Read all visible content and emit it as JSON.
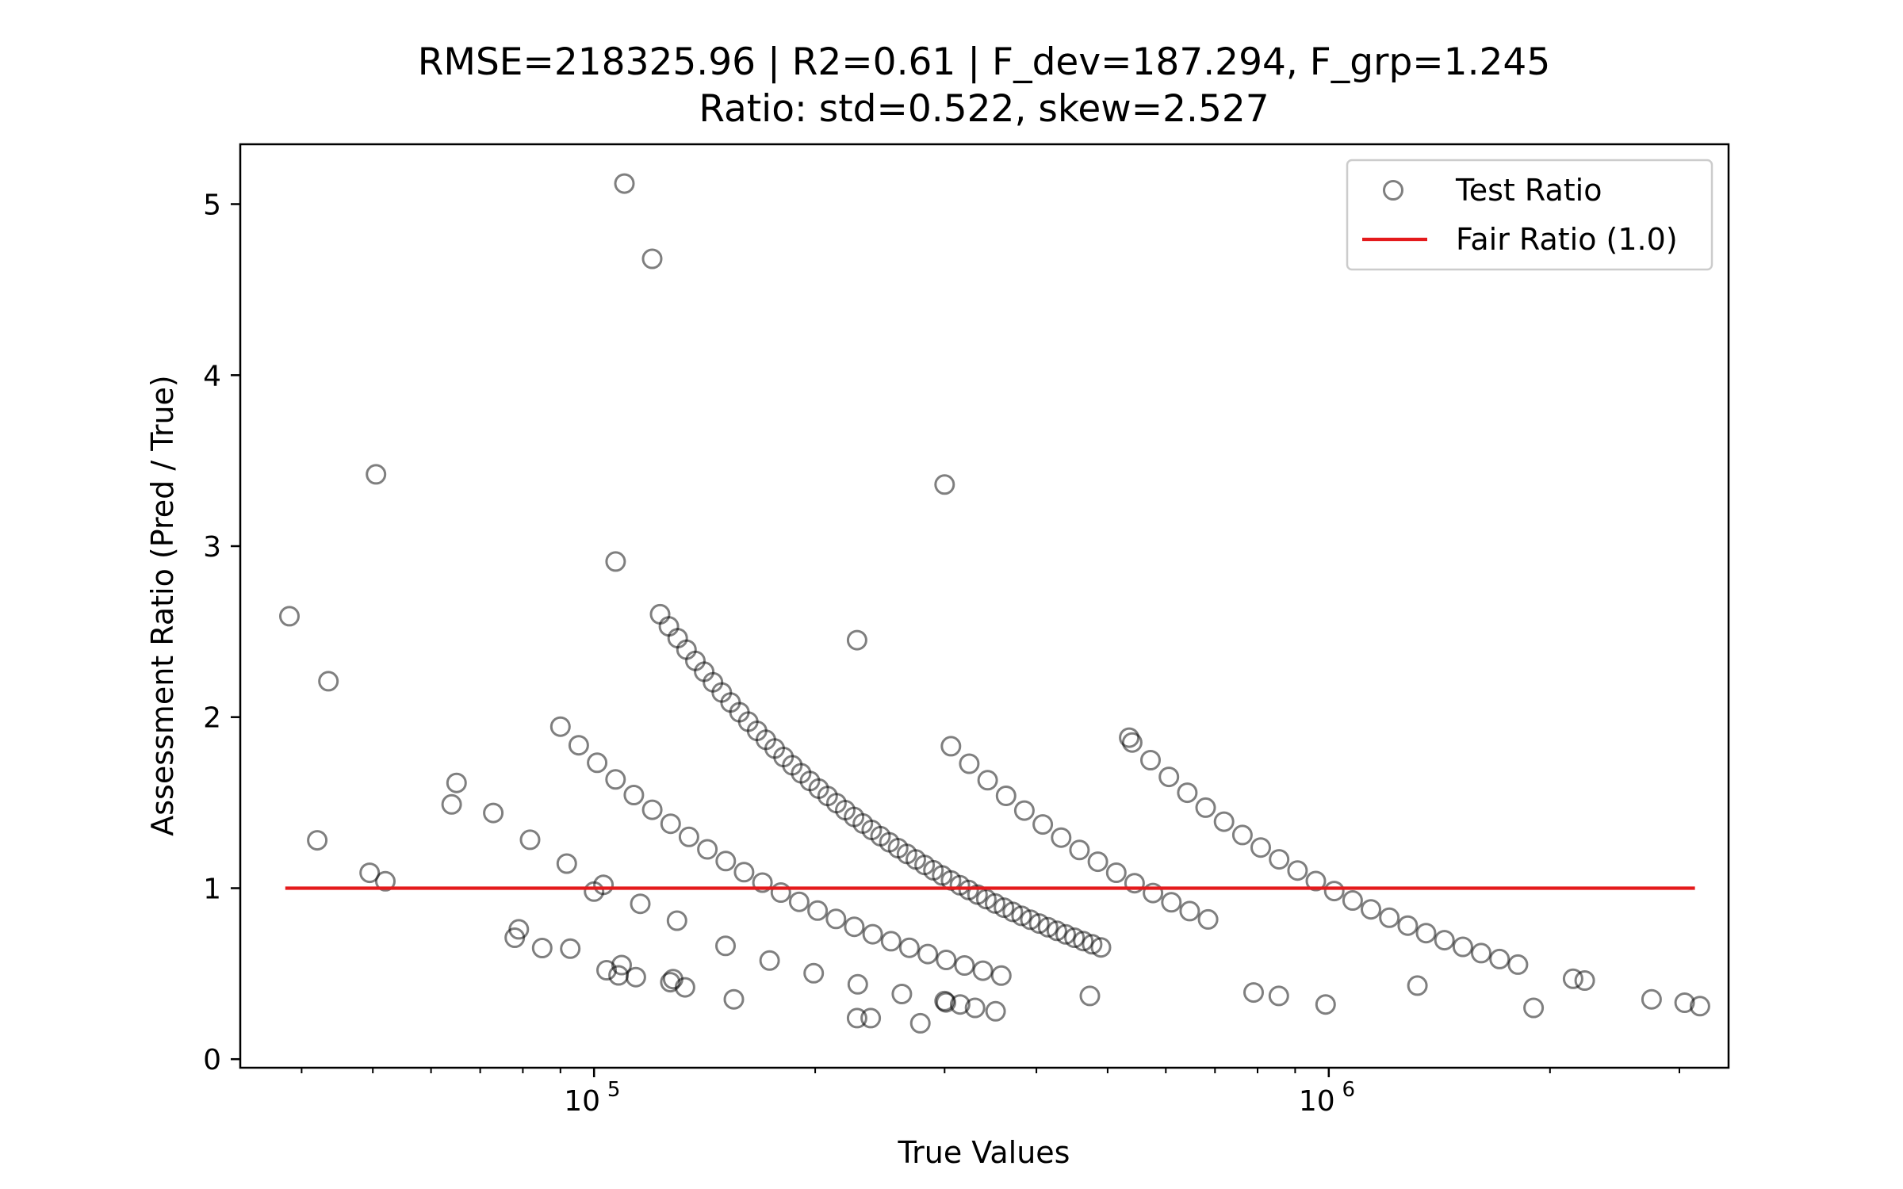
{
  "chart_data": {
    "type": "scatter",
    "title": "RMSE=218325.96 | R2=0.61 | F_dev=187.294, F_grp=1.245",
    "subtitle": "Ratio: std=0.522, skew=2.527",
    "xlabel": "True Values",
    "ylabel": "Assessment Ratio (Pred / True)",
    "xscale": "log",
    "xlim": [
      33000,
      3500000
    ],
    "ylim": [
      -0.05,
      5.35
    ],
    "x_ticks": [
      {
        "value": 100000,
        "base": "10",
        "exp": "5"
      },
      {
        "value": 1000000,
        "base": "10",
        "exp": "6"
      }
    ],
    "y_ticks": [
      {
        "value": 0,
        "label": "0"
      },
      {
        "value": 1,
        "label": "1"
      },
      {
        "value": 2,
        "label": "2"
      },
      {
        "value": 3,
        "label": "3"
      },
      {
        "value": 4,
        "label": "4"
      },
      {
        "value": 5,
        "label": "5"
      }
    ],
    "grid": false,
    "legend_position": "top-right",
    "legend": [
      {
        "label": "Test Ratio",
        "kind": "marker"
      },
      {
        "label": "Fair Ratio (1.0)",
        "kind": "line"
      }
    ],
    "fair_line": {
      "y": 1.0,
      "x_range": [
        38000,
        3150000
      ],
      "color": "#e41a1c"
    },
    "marker_color": "#000000",
    "scatter_families": [
      {
        "k": 105000,
        "x_min": 65000,
        "x_max": 132000,
        "step": 0.05
      },
      {
        "k": 175000,
        "x_min": 90000,
        "x_max": 375000,
        "step": 0.025
      },
      {
        "k": 320000,
        "x_min": 123000,
        "x_max": 500000,
        "step": 0.012
      },
      {
        "k": 560000,
        "x_min": 306000,
        "x_max": 720000,
        "step": 0.025
      },
      {
        "k": 1000000,
        "x_min": 540000,
        "x_max": 1850000,
        "step": 0.025
      },
      {
        "k": 60000,
        "x_min": 79000,
        "x_max": 132000,
        "step": 0.07
      },
      {
        "k": 100000,
        "x_min": 151000,
        "x_max": 303000,
        "step": 0.06
      }
    ],
    "scatter_points": [
      [
        38500,
        2.59
      ],
      [
        43500,
        2.21
      ],
      [
        42000,
        1.28
      ],
      [
        49500,
        1.09
      ],
      [
        50500,
        3.42
      ],
      [
        52000,
        1.04
      ],
      [
        64000,
        1.49
      ],
      [
        78000,
        0.71
      ],
      [
        85000,
        0.65
      ],
      [
        100000,
        0.98
      ],
      [
        104000,
        0.52
      ],
      [
        108000,
        0.49
      ],
      [
        114000,
        0.48
      ],
      [
        110000,
        5.12
      ],
      [
        120000,
        4.68
      ],
      [
        107000,
        2.91
      ],
      [
        127000,
        0.45
      ],
      [
        133000,
        0.42
      ],
      [
        155000,
        0.35
      ],
      [
        228000,
        2.45
      ],
      [
        228000,
        0.24
      ],
      [
        238000,
        0.24
      ],
      [
        278000,
        0.21
      ],
      [
        300000,
        3.36
      ],
      [
        300000,
        0.34
      ],
      [
        315000,
        0.32
      ],
      [
        330000,
        0.3
      ],
      [
        352000,
        0.28
      ],
      [
        473000,
        0.37
      ],
      [
        535000,
        1.88
      ],
      [
        790000,
        0.39
      ],
      [
        855000,
        0.37
      ],
      [
        990000,
        0.32
      ],
      [
        1320000,
        0.43
      ],
      [
        1900000,
        0.3
      ],
      [
        2150000,
        0.47
      ],
      [
        2230000,
        0.46
      ],
      [
        2750000,
        0.35
      ],
      [
        3050000,
        0.33
      ],
      [
        3200000,
        0.31
      ]
    ]
  }
}
